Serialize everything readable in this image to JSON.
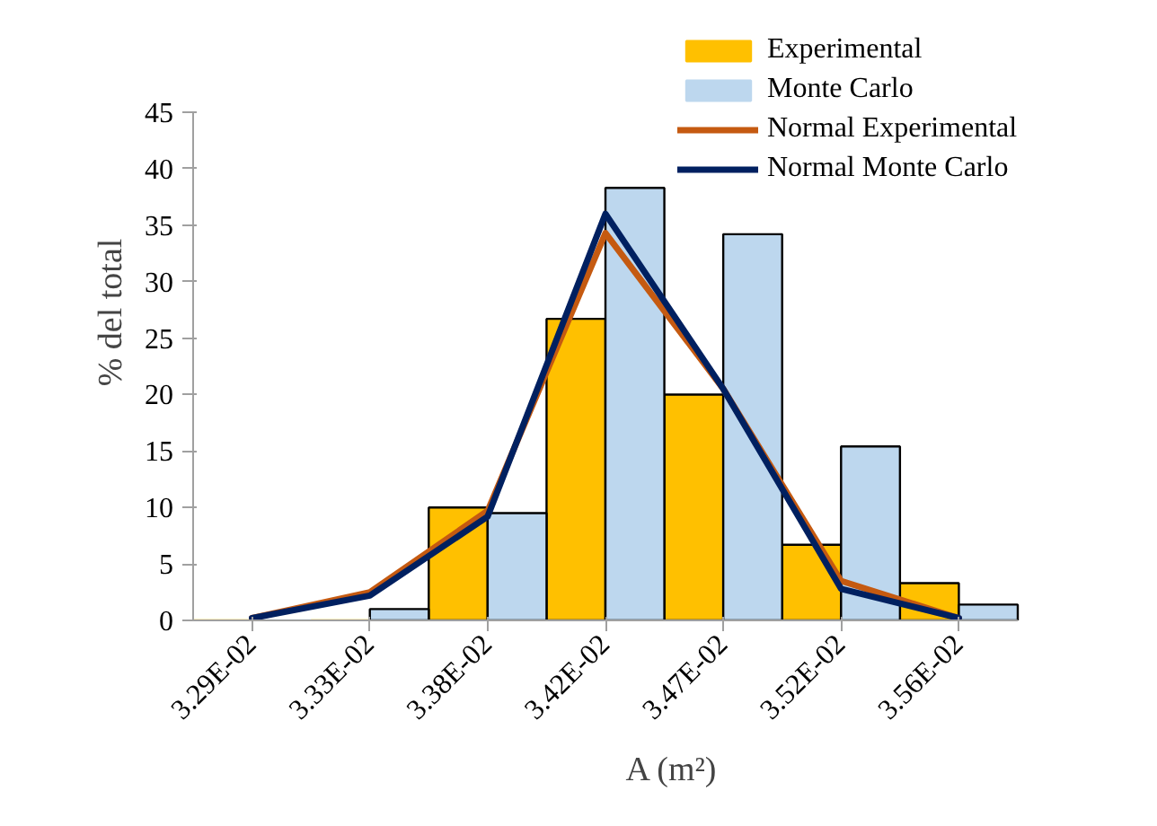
{
  "chart_data": {
    "type": "bar",
    "xlabel": "A (m²)",
    "ylabel": "% del total",
    "categories": [
      "3.29E-02",
      "3.33E-02",
      "3.38E-02",
      "3.42E-02",
      "3.47E-02",
      "3.52E-02",
      "3.56E-02"
    ],
    "series": [
      {
        "name": "Experimental",
        "color": "#ffc000",
        "values": [
          0,
          0,
          10,
          26.7,
          20,
          6.7,
          3.3
        ]
      },
      {
        "name": "Monte Carlo",
        "color": "#bdd7ee",
        "values": [
          0,
          1,
          9.5,
          38.3,
          34.2,
          15.4,
          1.4
        ]
      },
      {
        "name": "Normal Experimental",
        "type": "line",
        "color": "#c55a11",
        "values": [
          0.2,
          2.5,
          9.7,
          34.3,
          20.5,
          3.5,
          0.2
        ]
      },
      {
        "name": "Normal Monte Carlo",
        "type": "line",
        "color": "#002060",
        "values": [
          0.2,
          2.2,
          9.2,
          36,
          20.5,
          2.8,
          0.2
        ]
      }
    ],
    "ylim": [
      0,
      45
    ],
    "yticks": [
      0,
      5,
      10,
      15,
      20,
      25,
      30,
      35,
      40,
      45
    ],
    "grid": false,
    "legend": "top right"
  }
}
